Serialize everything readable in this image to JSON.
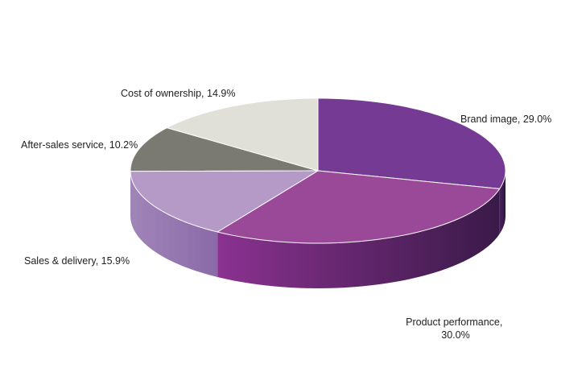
{
  "chart_data": {
    "type": "pie",
    "style": "3d",
    "start_angle_deg": 0,
    "direction": "clockwise-from-top",
    "slices": [
      {
        "label": "Brand image",
        "value": 29.0,
        "value_label": "29.0%",
        "color": "#743a94"
      },
      {
        "label": "Product performance",
        "value": 30.0,
        "value_label": "30.0%",
        "color": "#9a4898"
      },
      {
        "label": "Sales & delivery",
        "value": 15.9,
        "value_label": "15.9%",
        "color": "#b59ac8"
      },
      {
        "label": "After-sales service",
        "value": 10.2,
        "value_label": "10.2%",
        "color": "#7a7a72"
      },
      {
        "label": "Cost of ownership",
        "value": 14.9,
        "value_label": "14.9%",
        "color": "#e0dfd8"
      }
    ],
    "legend": "none",
    "labels": "outside"
  }
}
